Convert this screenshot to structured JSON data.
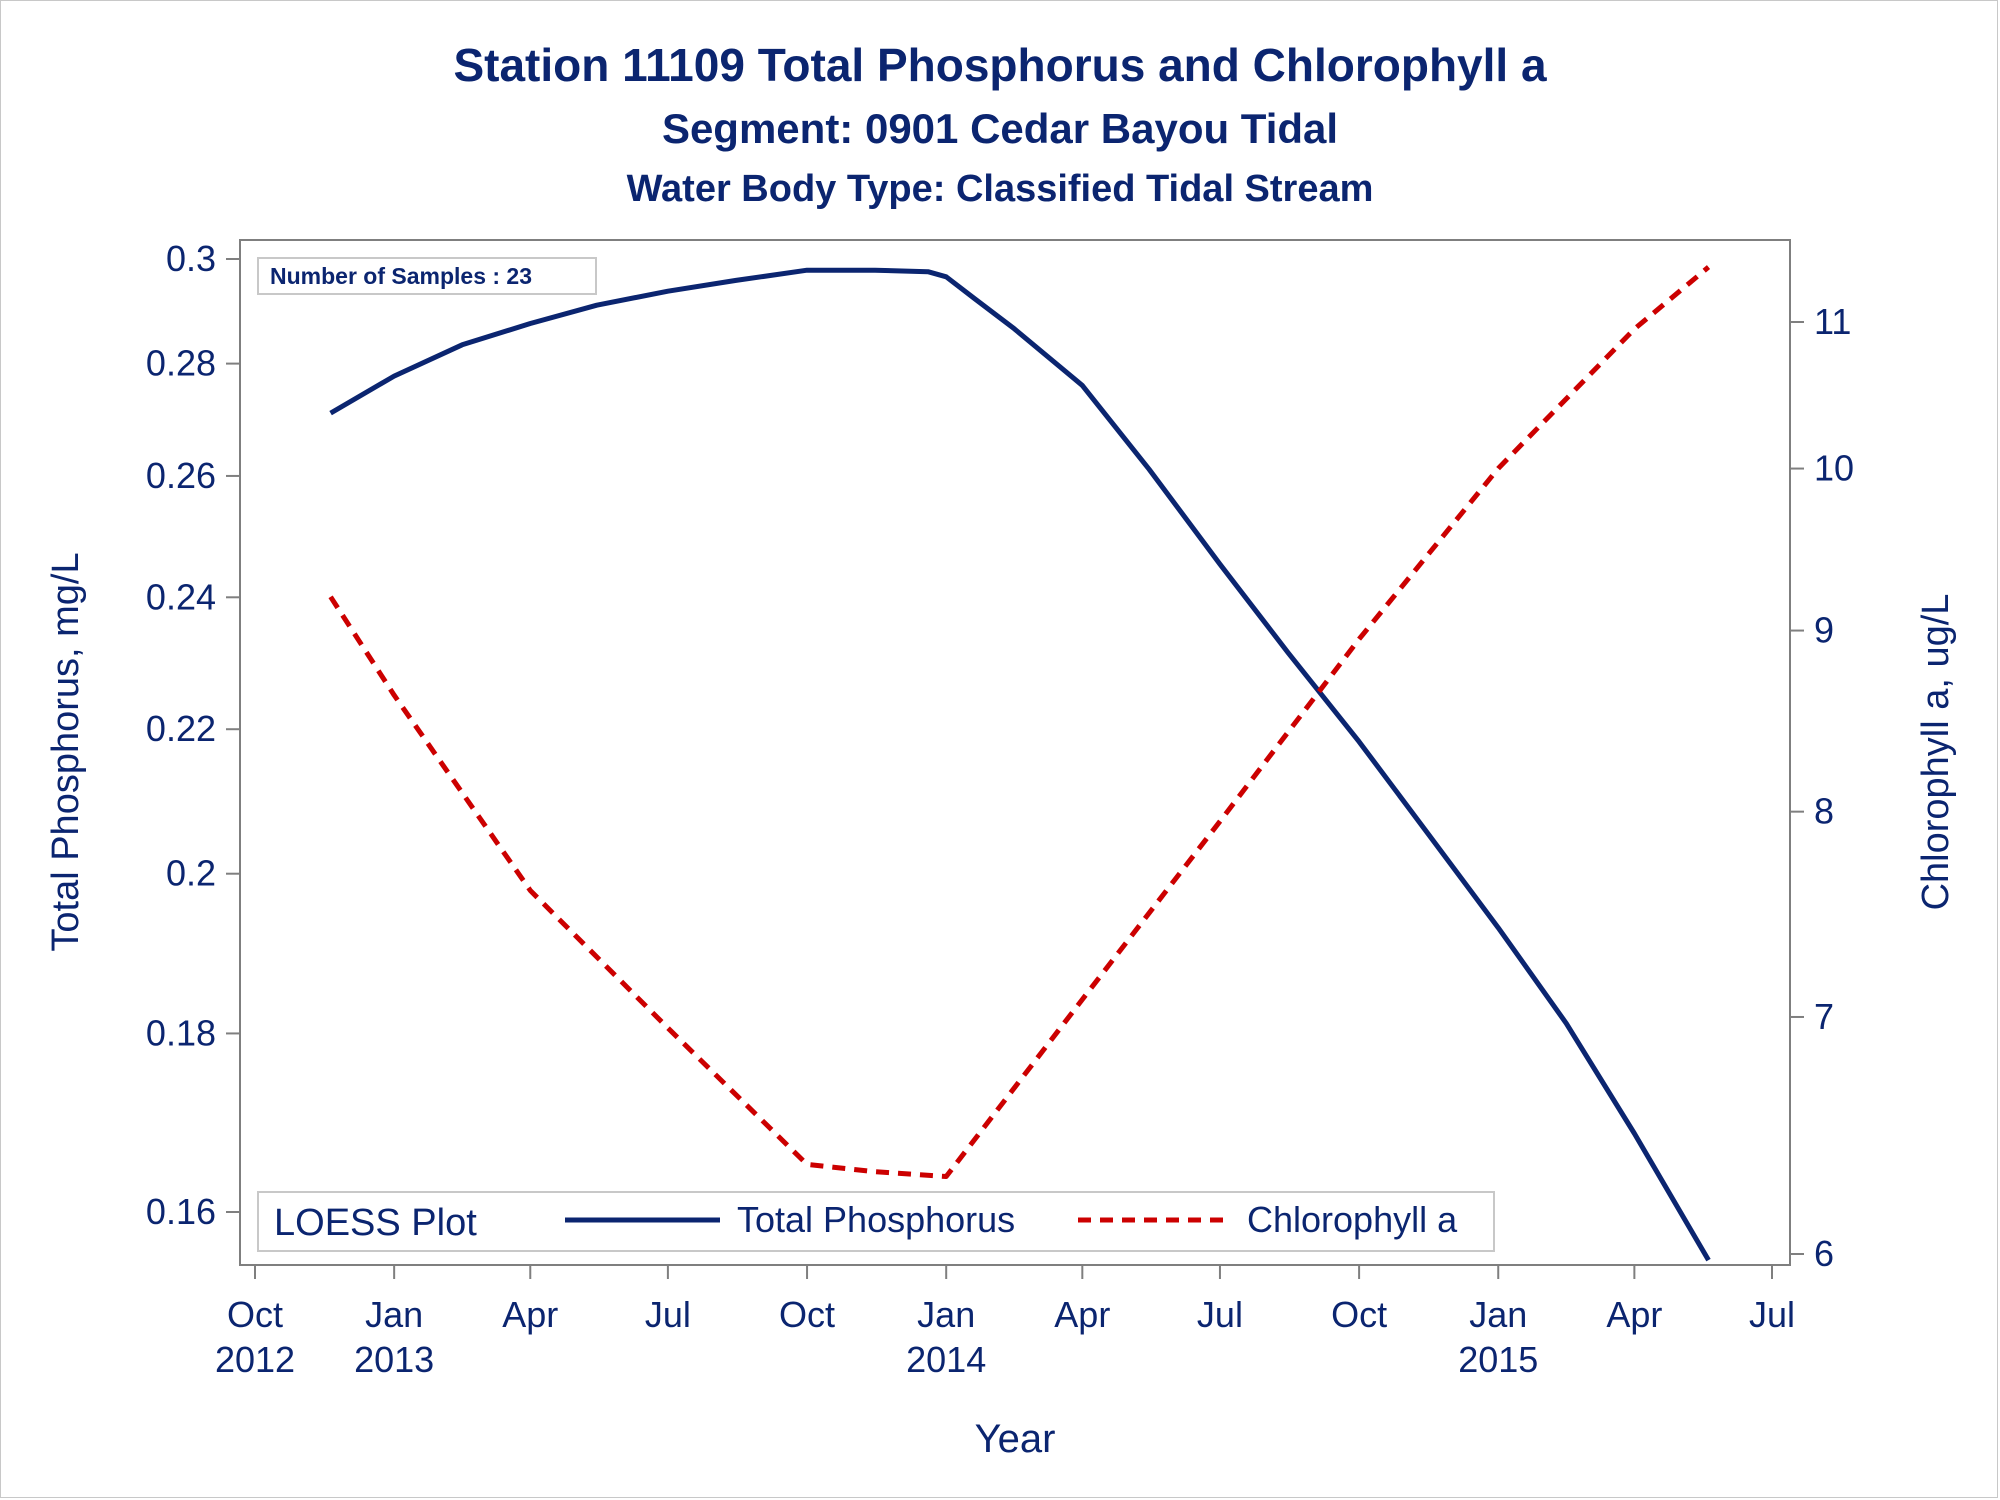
{
  "title": "Station 11109    Total Phosphorus and Chlorophyll a",
  "subtitle": "Segment: 0901  Cedar Bayou Tidal",
  "subtitle2": "Water Body Type: Classified Tidal Stream",
  "colors": {
    "text": "#0b2570",
    "axis": "#7f7f7f",
    "phosphorus": "#0b2570",
    "chlorophyll": "#cc0000"
  },
  "chart_data": {
    "type": "line",
    "title": "Station 11109    Total Phosphorus and Chlorophyll a",
    "xlabel": "Year",
    "ylabel": "Total Phosphorus, mg/L",
    "y2label": "Chlorophyll a, ug/L",
    "y_scale": "log",
    "y2_scale": "log",
    "xlim": [
      "2012-10-01",
      "2015-07-01"
    ],
    "ylim": [
      0.155,
      0.301
    ],
    "y2lim": [
      6.0,
      11.4
    ],
    "x_ticks": [
      {
        "date": "2012-10-01",
        "label": "Oct",
        "year": "2012"
      },
      {
        "date": "2013-01-01",
        "label": "Jan",
        "year": "2013"
      },
      {
        "date": "2013-04-01",
        "label": "Apr",
        "year": ""
      },
      {
        "date": "2013-07-01",
        "label": "Jul",
        "year": ""
      },
      {
        "date": "2013-10-01",
        "label": "Oct",
        "year": ""
      },
      {
        "date": "2014-01-01",
        "label": "Jan",
        "year": "2014"
      },
      {
        "date": "2014-04-01",
        "label": "Apr",
        "year": ""
      },
      {
        "date": "2014-07-01",
        "label": "Jul",
        "year": ""
      },
      {
        "date": "2014-10-01",
        "label": "Oct",
        "year": ""
      },
      {
        "date": "2015-01-01",
        "label": "Jan",
        "year": "2015"
      },
      {
        "date": "2015-04-01",
        "label": "Apr",
        "year": ""
      },
      {
        "date": "2015-07-01",
        "label": "Jul",
        "year": ""
      }
    ],
    "y_ticks": [
      0.16,
      0.18,
      0.2,
      0.22,
      0.24,
      0.26,
      0.28,
      0.3
    ],
    "y_tick_labels": [
      "0.16",
      "0.18",
      "0.2",
      "0.22",
      "0.24",
      "0.26",
      "0.28",
      "0.3"
    ],
    "y2_ticks": [
      6,
      7,
      8,
      9,
      10,
      11
    ],
    "y2_tick_labels": [
      "6",
      "7",
      "8",
      "9",
      "10",
      "11"
    ],
    "inset_label": "Number of Samples : 23",
    "legend": {
      "title": "LOESS Plot",
      "placement": "bottom-left",
      "entries": [
        "Total Phosphorus",
        "Chlorophyll a"
      ]
    },
    "series": [
      {
        "name": "Total Phosphorus",
        "axis": "left",
        "style": "solid",
        "points": [
          {
            "x": "2012-11-20",
            "y": 0.271
          },
          {
            "x": "2013-01-01",
            "y": 0.2777
          },
          {
            "x": "2013-02-15",
            "y": 0.2835
          },
          {
            "x": "2013-04-01",
            "y": 0.2875
          },
          {
            "x": "2013-05-15",
            "y": 0.291
          },
          {
            "x": "2013-07-01",
            "y": 0.2937
          },
          {
            "x": "2013-08-15",
            "y": 0.2958
          },
          {
            "x": "2013-10-01",
            "y": 0.2978
          },
          {
            "x": "2013-11-15",
            "y": 0.2978
          },
          {
            "x": "2013-12-20",
            "y": 0.2975
          },
          {
            "x": "2014-01-01",
            "y": 0.2965
          },
          {
            "x": "2014-01-20",
            "y": 0.2922
          },
          {
            "x": "2014-02-15",
            "y": 0.2865
          },
          {
            "x": "2014-04-01",
            "y": 0.276
          },
          {
            "x": "2014-05-15",
            "y": 0.2612
          },
          {
            "x": "2014-07-01",
            "y": 0.2453
          },
          {
            "x": "2014-08-15",
            "y": 0.2314
          },
          {
            "x": "2014-10-01",
            "y": 0.2182
          },
          {
            "x": "2014-11-15",
            "y": 0.2055
          },
          {
            "x": "2015-01-01",
            "y": 0.193
          },
          {
            "x": "2015-02-15",
            "y": 0.1812
          },
          {
            "x": "2015-04-01",
            "y": 0.1685
          },
          {
            "x": "2015-05-20",
            "y": 0.155
          }
        ]
      },
      {
        "name": "Chlorophyll a",
        "axis": "right",
        "style": "dashed",
        "points": [
          {
            "x": "2012-11-20",
            "y": 9.2
          },
          {
            "x": "2013-01-01",
            "y": 8.63
          },
          {
            "x": "2013-04-01",
            "y": 7.6
          },
          {
            "x": "2013-07-01",
            "y": 6.95
          },
          {
            "x": "2013-10-01",
            "y": 6.36
          },
          {
            "x": "2013-11-15",
            "y": 6.33
          },
          {
            "x": "2014-01-01",
            "y": 6.31
          },
          {
            "x": "2014-04-01",
            "y": 7.08
          },
          {
            "x": "2014-07-01",
            "y": 7.95
          },
          {
            "x": "2014-10-01",
            "y": 8.95
          },
          {
            "x": "2015-01-01",
            "y": 10.0
          },
          {
            "x": "2015-04-01",
            "y": 10.95
          },
          {
            "x": "2015-05-20",
            "y": 11.4
          }
        ]
      }
    ]
  }
}
